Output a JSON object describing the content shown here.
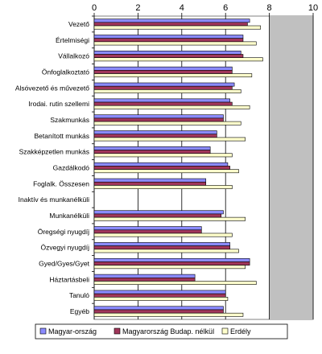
{
  "chart_data": {
    "type": "bar",
    "orientation": "horizontal",
    "title": "",
    "xlabel": "",
    "ylabel": "",
    "xlim": [
      0,
      10
    ],
    "x_ticks": [
      "0",
      "2",
      "4",
      "6",
      "8",
      "10"
    ],
    "grid": true,
    "shaded_region": [
      8,
      10
    ],
    "legend_position": "bottom",
    "categories": [
      "Vezető",
      "Értelmiségi",
      "Vállalkozó",
      "Önfoglalkoztató",
      "Alsóvezető és művezető",
      "Irodai. rutin szellemi",
      "Szakmunkás",
      "Betanított munkás",
      "Szakképzetlen munkás",
      "Gazdálkodó",
      "Foglalk. Összesen",
      "Inaktív és munkanélküli",
      "Munkanélküli",
      "Öregségi nyugdíj",
      "Özvegyi nyugdíj",
      "Gyed/Gyes/Gyet",
      "Háztartásbeli",
      "Tanuló",
      "Egyéb"
    ],
    "series": [
      {
        "name": "Magyar-ország",
        "color": "#8b8bff",
        "values": [
          7.1,
          6.8,
          6.7,
          6.3,
          6.4,
          6.2,
          5.9,
          5.6,
          5.3,
          6.1,
          5.1,
          null,
          5.9,
          4.9,
          6.2,
          7.1,
          4.6,
          6.0,
          5.9
        ]
      },
      {
        "name": "Magyarország Budap. nélkül",
        "color": "#a0365a",
        "values": [
          7.0,
          6.8,
          6.8,
          6.3,
          6.3,
          6.3,
          5.9,
          5.6,
          5.3,
          6.2,
          5.1,
          null,
          5.8,
          4.9,
          6.2,
          7.1,
          4.6,
          6.0,
          5.9
        ]
      },
      {
        "name": "Erdély",
        "color": "#ffffcc",
        "values": [
          7.6,
          7.4,
          7.7,
          7.2,
          6.7,
          7.1,
          6.7,
          6.9,
          6.3,
          6.6,
          6.3,
          null,
          6.9,
          6.3,
          6.6,
          6.9,
          7.4,
          6.1,
          6.8
        ]
      }
    ]
  }
}
